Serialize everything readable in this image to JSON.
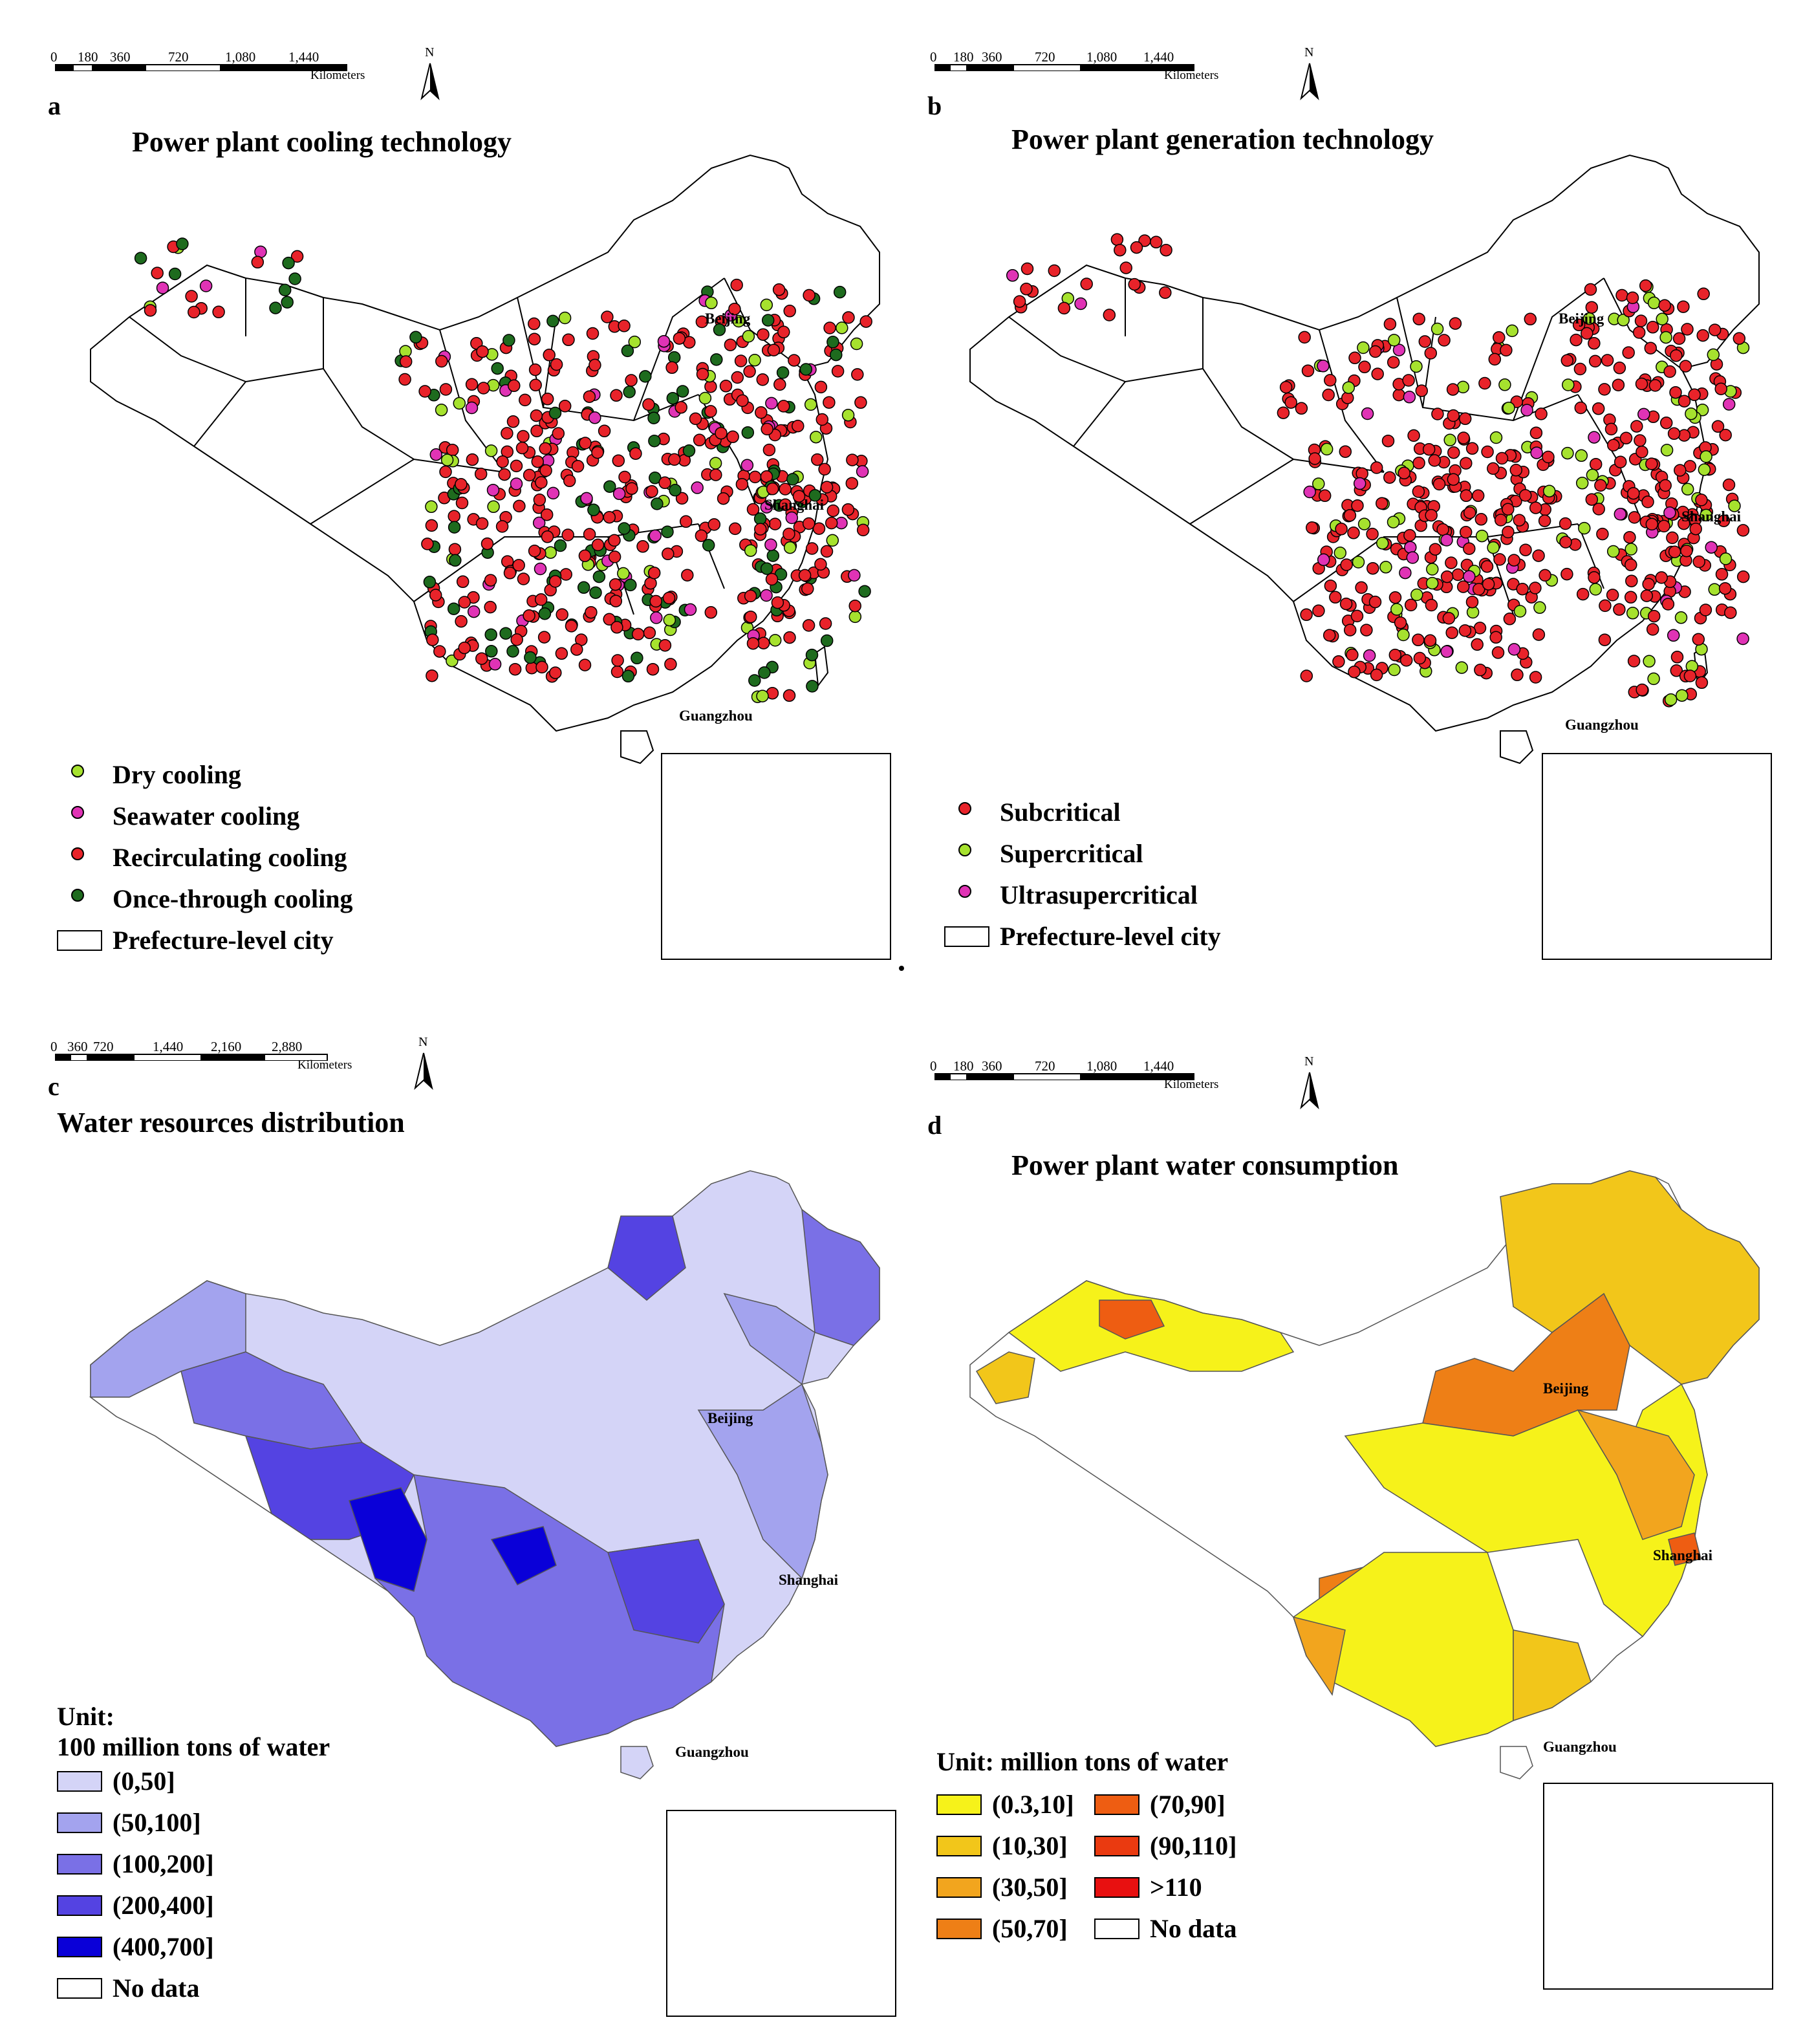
{
  "panels": {
    "a": {
      "letter": "a",
      "title": "Power plant cooling technology",
      "scale": {
        "ticks": [
          "0",
          "180",
          "360",
          "720",
          "1,080",
          "1,440"
        ],
        "unit": "Kilometers"
      },
      "north": "N",
      "cities": {
        "beijing": "Beijing",
        "shanghai": "Shanghai",
        "guangzhou": "Guangzhou"
      },
      "legend": [
        {
          "label": "Dry cooling",
          "color": "#a6e22e"
        },
        {
          "label": "Seawater cooling",
          "color": "#e033b5"
        },
        {
          "label": "Recirculating cooling",
          "color": "#e8232a"
        },
        {
          "label": "Once-through cooling",
          "color": "#1e6b1e"
        },
        {
          "label": "Prefecture-level city",
          "color": "#ffffff"
        }
      ]
    },
    "b": {
      "letter": "b",
      "title": "Power plant generation technology",
      "scale": {
        "ticks": [
          "0",
          "180",
          "360",
          "720",
          "1,080",
          "1,440"
        ],
        "unit": "Kilometers"
      },
      "north": "N",
      "cities": {
        "beijing": "Beijing",
        "shanghai": "Shanghai",
        "guangzhou": "Guangzhou"
      },
      "legend": [
        {
          "label": "Subcritical",
          "color": "#e8232a"
        },
        {
          "label": "Supercritical",
          "color": "#a6e22e"
        },
        {
          "label": "Ultrasupercritical",
          "color": "#e033b5"
        },
        {
          "label": "Prefecture-level city",
          "color": "#ffffff"
        }
      ]
    },
    "c": {
      "letter": "c",
      "title": "Water resources distribution",
      "scale": {
        "ticks": [
          "0",
          "360",
          "720",
          "1,440",
          "2,160",
          "2,880"
        ],
        "unit": "Kilometers"
      },
      "north": "N",
      "cities": {
        "beijing": "Beijing",
        "shanghai": "Shanghai",
        "guangzhou": "Guangzhou"
      },
      "unit_line1": "Unit:",
      "unit_line2": "100 million tons of water",
      "legend": [
        {
          "label": "(0,50]",
          "color": "#d4d4f7"
        },
        {
          "label": "(50,100]",
          "color": "#a3a3ee"
        },
        {
          "label": "(100,200]",
          "color": "#7a70e6"
        },
        {
          "label": "(200,400]",
          "color": "#5443e2"
        },
        {
          "label": "(400,700]",
          "color": "#0a00d8"
        },
        {
          "label": "No data",
          "color": "#ffffff"
        }
      ]
    },
    "d": {
      "letter": "d",
      "title": "Power plant water consumption",
      "scale": {
        "ticks": [
          "0",
          "180",
          "360",
          "720",
          "1,080",
          "1,440"
        ],
        "unit": "Kilometers"
      },
      "north": "N",
      "cities": {
        "beijing": "Beijing",
        "shanghai": "Shanghai",
        "guangzhou": "Guangzhou"
      },
      "unit_line1": "Unit: million tons of water",
      "legend_left": [
        {
          "label": "(0.3,10]",
          "color": "#f6f21a"
        },
        {
          "label": "(10,30]",
          "color": "#f2c61a"
        },
        {
          "label": "(30,50]",
          "color": "#f2a51e"
        },
        {
          "label": "(50,70]",
          "color": "#ee7f16"
        }
      ],
      "legend_right": [
        {
          "label": "(70,90]",
          "color": "#ee5d12"
        },
        {
          "label": "(90,110]",
          "color": "#ea3a10"
        },
        {
          "label": ">110",
          "color": "#e81010"
        },
        {
          "label": "No data",
          "color": "#ffffff"
        }
      ]
    }
  }
}
